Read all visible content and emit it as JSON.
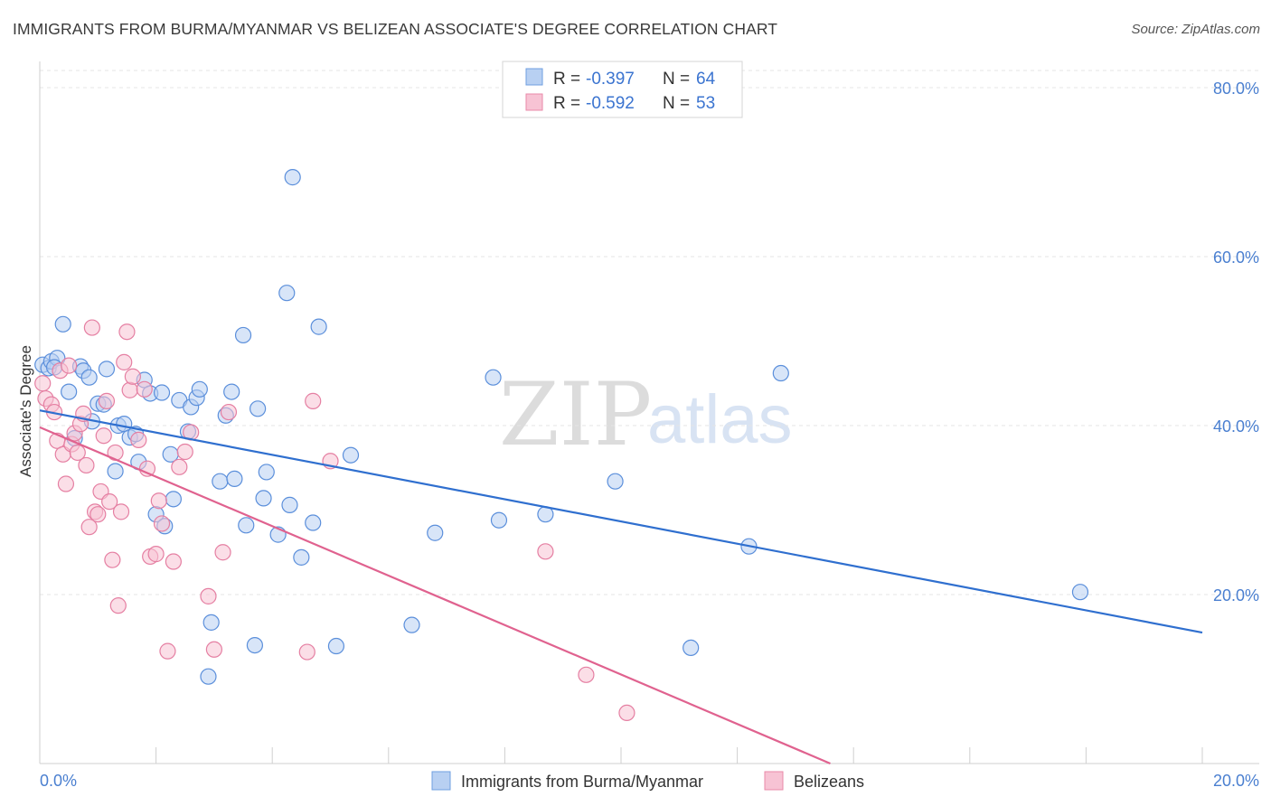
{
  "title": "IMMIGRANTS FROM BURMA/MYANMAR VS BELIZEAN ASSOCIATE'S DEGREE CORRELATION CHART",
  "source": "Source: ZipAtlas.com",
  "watermark": {
    "zip": "ZIP",
    "atlas": "atlas"
  },
  "legend": {
    "r_label": "R =",
    "n_label": "N =",
    "series": [
      {
        "r": "-0.397",
        "n": "64",
        "color": "#6f9fe0",
        "fill": "#b8d0f2"
      },
      {
        "r": "-0.592",
        "n": "53",
        "color": "#e889a8",
        "fill": "#f7c3d4"
      }
    ]
  },
  "chart_data": {
    "type": "scatter",
    "title": "IMMIGRANTS FROM BURMA/MYANMAR VS BELIZEAN ASSOCIATE'S DEGREE CORRELATION CHART",
    "xlabel": "",
    "ylabel": "Associate's Degree",
    "xlim": [
      0,
      20
    ],
    "ylim": [
      0,
      80
    ],
    "x_tick_labels": [
      "0.0%",
      "20.0%"
    ],
    "y_ticks": [
      20,
      40,
      60,
      80
    ],
    "y_tick_labels": [
      "20.0%",
      "40.0%",
      "60.0%",
      "80.0%"
    ],
    "grid": true,
    "legend_position": "top-center",
    "series": [
      {
        "name": "Immigrants from Burma/Myanmar",
        "color": "#5b8fdb",
        "fill": "#b8d0f2",
        "trend": {
          "x": [
            0.0,
            20.0
          ],
          "y": [
            41.8,
            15.5
          ],
          "color": "#2f6fcf"
        },
        "points": [
          [
            0.05,
            47.2
          ],
          [
            0.15,
            46.8
          ],
          [
            0.2,
            47.6
          ],
          [
            0.3,
            48.0
          ],
          [
            0.4,
            52.0
          ],
          [
            0.5,
            44.0
          ],
          [
            0.6,
            38.5
          ],
          [
            0.7,
            47.0
          ],
          [
            0.75,
            46.5
          ],
          [
            0.85,
            45.7
          ],
          [
            0.9,
            40.5
          ],
          [
            1.0,
            42.6
          ],
          [
            1.1,
            42.5
          ],
          [
            1.15,
            46.7
          ],
          [
            1.3,
            34.6
          ],
          [
            1.35,
            40.0
          ],
          [
            1.45,
            40.2
          ],
          [
            1.55,
            38.6
          ],
          [
            1.65,
            39.0
          ],
          [
            1.7,
            35.7
          ],
          [
            1.8,
            45.4
          ],
          [
            1.9,
            43.8
          ],
          [
            2.0,
            29.5
          ],
          [
            2.1,
            43.9
          ],
          [
            2.15,
            28.1
          ],
          [
            2.25,
            36.6
          ],
          [
            2.3,
            31.3
          ],
          [
            2.4,
            43.0
          ],
          [
            2.55,
            39.3
          ],
          [
            2.6,
            42.2
          ],
          [
            2.7,
            43.3
          ],
          [
            2.75,
            44.3
          ],
          [
            2.9,
            10.3
          ],
          [
            2.95,
            16.7
          ],
          [
            3.1,
            33.4
          ],
          [
            3.2,
            41.2
          ],
          [
            3.3,
            44.0
          ],
          [
            3.35,
            33.7
          ],
          [
            3.5,
            50.7
          ],
          [
            3.55,
            28.2
          ],
          [
            3.7,
            14.0
          ],
          [
            3.75,
            42.0
          ],
          [
            3.85,
            31.4
          ],
          [
            3.9,
            34.5
          ],
          [
            4.1,
            27.1
          ],
          [
            4.25,
            55.7
          ],
          [
            4.3,
            30.6
          ],
          [
            4.35,
            69.4
          ],
          [
            4.5,
            24.4
          ],
          [
            4.7,
            28.5
          ],
          [
            4.8,
            51.7
          ],
          [
            5.1,
            13.9
          ],
          [
            5.35,
            36.5
          ],
          [
            6.4,
            16.4
          ],
          [
            6.8,
            27.3
          ],
          [
            7.8,
            45.7
          ],
          [
            7.9,
            28.8
          ],
          [
            8.7,
            29.5
          ],
          [
            9.9,
            33.4
          ],
          [
            11.2,
            13.7
          ],
          [
            12.2,
            25.7
          ],
          [
            12.75,
            46.2
          ],
          [
            17.9,
            20.3
          ],
          [
            0.25,
            46.9
          ]
        ]
      },
      {
        "name": "Belizeans",
        "color": "#e57fa2",
        "fill": "#f7c3d4",
        "trend": {
          "x": [
            0.0,
            13.6
          ],
          "y": [
            39.8,
            0.0
          ],
          "color": "#e0628f"
        },
        "points": [
          [
            0.05,
            45.0
          ],
          [
            0.1,
            43.2
          ],
          [
            0.2,
            42.5
          ],
          [
            0.25,
            41.6
          ],
          [
            0.3,
            38.2
          ],
          [
            0.35,
            46.5
          ],
          [
            0.4,
            36.6
          ],
          [
            0.45,
            33.1
          ],
          [
            0.5,
            47.1
          ],
          [
            0.55,
            37.8
          ],
          [
            0.6,
            39.1
          ],
          [
            0.65,
            36.8
          ],
          [
            0.7,
            40.2
          ],
          [
            0.75,
            41.4
          ],
          [
            0.8,
            35.3
          ],
          [
            0.85,
            28.0
          ],
          [
            0.9,
            51.6
          ],
          [
            0.95,
            29.8
          ],
          [
            1.0,
            29.5
          ],
          [
            1.05,
            32.2
          ],
          [
            1.1,
            38.8
          ],
          [
            1.15,
            42.9
          ],
          [
            1.2,
            31.0
          ],
          [
            1.25,
            24.1
          ],
          [
            1.3,
            36.8
          ],
          [
            1.35,
            18.7
          ],
          [
            1.4,
            29.8
          ],
          [
            1.45,
            47.5
          ],
          [
            1.5,
            51.1
          ],
          [
            1.55,
            44.2
          ],
          [
            1.6,
            45.8
          ],
          [
            1.7,
            38.3
          ],
          [
            1.8,
            44.3
          ],
          [
            1.85,
            34.9
          ],
          [
            1.9,
            24.5
          ],
          [
            2.0,
            24.8
          ],
          [
            2.05,
            31.1
          ],
          [
            2.1,
            28.4
          ],
          [
            2.2,
            13.3
          ],
          [
            2.3,
            23.9
          ],
          [
            2.4,
            35.1
          ],
          [
            2.5,
            36.9
          ],
          [
            2.6,
            39.2
          ],
          [
            2.9,
            19.8
          ],
          [
            3.0,
            13.5
          ],
          [
            3.15,
            25.0
          ],
          [
            3.25,
            41.6
          ],
          [
            4.6,
            13.2
          ],
          [
            4.7,
            42.9
          ],
          [
            5.0,
            35.8
          ],
          [
            8.7,
            25.1
          ],
          [
            9.4,
            10.5
          ],
          [
            10.1,
            6.0
          ]
        ]
      }
    ]
  }
}
